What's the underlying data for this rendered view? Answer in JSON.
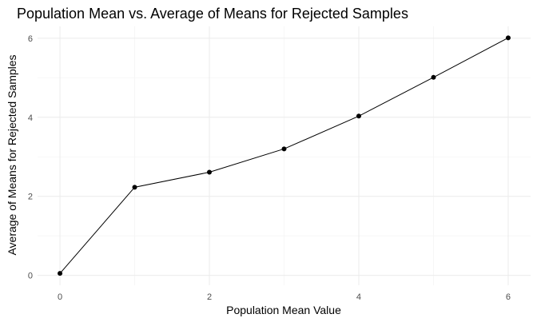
{
  "chart_data": {
    "type": "line",
    "title": "Population Mean vs. Average of Means for Rejected Samples",
    "xlabel": "Population Mean Value",
    "ylabel": "Average of Means for Rejected Samples",
    "x": [
      0,
      1,
      2,
      3,
      4,
      5,
      6
    ],
    "series": [
      {
        "values": [
          0.05,
          2.23,
          2.61,
          3.2,
          4.03,
          5.01,
          6.01
        ]
      }
    ],
    "xlim": [
      -0.3,
      6.3
    ],
    "ylim": [
      -0.25,
      6.3
    ],
    "xticks": [
      0,
      2,
      4,
      6
    ],
    "yticks": [
      0,
      2,
      4,
      6
    ],
    "xtick_labels": [
      "0",
      "2",
      "4",
      "6"
    ],
    "ytick_labels": [
      "0",
      "2",
      "4",
      "6"
    ],
    "grid": true,
    "legend": "none",
    "colors": {
      "line": "#000000",
      "point": "#000000",
      "grid_major": "#ebebeb",
      "grid_minor": "#f5f5f5",
      "background": "#ffffff"
    }
  }
}
